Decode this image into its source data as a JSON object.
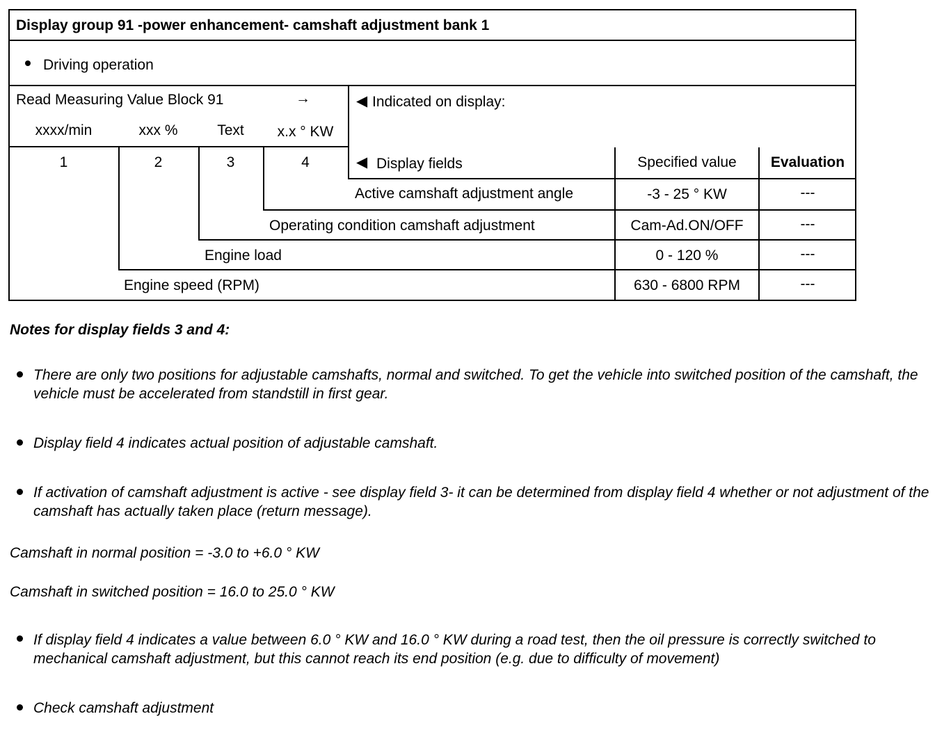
{
  "title": "Display group 91 -power enhancement- camshaft adjustment bank 1",
  "condition": "Driving operation",
  "read_block": "Read Measuring Value Block 91",
  "arrow": "→",
  "units": [
    "xxxx/min",
    "xxx %",
    "Text",
    "x.x ° KW"
  ],
  "field_numbers": [
    "1",
    "2",
    "3",
    "4"
  ],
  "indicated": "Indicated on display:",
  "columns": {
    "display_fields": "Display fields",
    "specified": "Specified value",
    "evaluation": "Evaluation"
  },
  "rows": [
    {
      "field": "Active camshaft adjustment angle",
      "spec": "-3 - 25 ° KW",
      "eval": "---"
    },
    {
      "field": "Operating condition camshaft adjustment",
      "spec": "Cam-Ad.ON/OFF",
      "eval": "---"
    },
    {
      "field": "Engine load",
      "spec": "0 - 120 %",
      "eval": "---"
    },
    {
      "field": "Engine speed (RPM)",
      "spec": "630 - 6800 RPM",
      "eval": "---"
    }
  ],
  "notes_heading": "Notes for display fields 3 and 4:",
  "notes": [
    "There are only two positions for adjustable camshafts, normal and switched. To get the vehicle into switched position of the camshaft, the vehicle must be accelerated from standstill in first gear.",
    "Display field 4 indicates actual position of adjustable camshaft.",
    "If activation of camshaft adjustment is active - see display field 3- it can be determined from display field 4 whether or not adjustment of the camshaft has actually taken place (return message)."
  ],
  "normal_position": "Camshaft in normal position = -3.0 to +6.0 ° KW",
  "switched_position": "Camshaft in switched position = 16.0 to 25.0 ° KW",
  "notes2": [
    "If display field 4 indicates a value between 6.0 ° KW and 16.0 ° KW during a road test, then the oil pressure is correctly switched to mechanical camshaft adjustment, but this cannot reach its end position (e.g. due to difficulty of movement)",
    "Check camshaft adjustment"
  ]
}
